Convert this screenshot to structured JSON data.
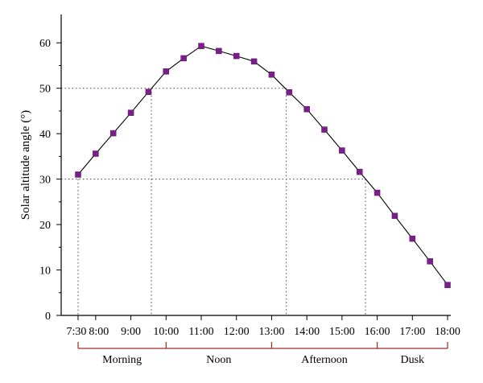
{
  "chart_data": {
    "type": "line",
    "ylabel": "Solar altitude angle (°)",
    "xlabel": "",
    "ylim": [
      0,
      65
    ],
    "xlim": [
      "7:30",
      "18:00"
    ],
    "y_ticks": [
      0,
      10,
      20,
      30,
      40,
      50,
      60
    ],
    "x_ticks": [
      "7:30",
      "8:00",
      "9:00",
      "10:00",
      "11:00",
      "12:00",
      "13:00",
      "14:00",
      "15:00",
      "16:00",
      "17:00",
      "18:00"
    ],
    "grid": false,
    "series": [
      {
        "x": [
          "7:30",
          "8:00",
          "8:30",
          "9:00",
          "9:30",
          "10:00",
          "10:30",
          "11:00",
          "11:30",
          "12:00",
          "12:30",
          "13:00",
          "13:30",
          "14:00",
          "14:30",
          "15:00",
          "15:30",
          "16:00",
          "16:30",
          "17:00",
          "17:30",
          "18:00"
        ],
        "values": [
          31.0,
          35.6,
          40.1,
          44.6,
          49.2,
          53.7,
          56.6,
          59.3,
          58.2,
          57.1,
          55.9,
          53.0,
          49.1,
          45.4,
          40.9,
          36.3,
          31.6,
          27.0,
          21.9,
          16.9,
          11.9,
          6.7
        ]
      }
    ],
    "reference_lines": [
      {
        "y": 50,
        "x_start": "7:30",
        "x_end": "13:25",
        "drop_at": [
          "9:35",
          "13:25"
        ]
      },
      {
        "y": 30,
        "x_start": "7:30",
        "x_end": "15:40",
        "drop_at": [
          "7:30",
          "15:40"
        ]
      }
    ],
    "periods": [
      {
        "label": "Morning",
        "start": "7:30",
        "end": "10:00"
      },
      {
        "label": "Noon",
        "start": "10:00",
        "end": "13:00"
      },
      {
        "label": "Afternoon",
        "start": "13:00",
        "end": "16:00"
      },
      {
        "label": "Dusk",
        "start": "16:00",
        "end": "18:00"
      }
    ],
    "colors": {
      "marker": "#7a1f8a",
      "line": "#000000",
      "bracket": "#a0292a"
    }
  }
}
